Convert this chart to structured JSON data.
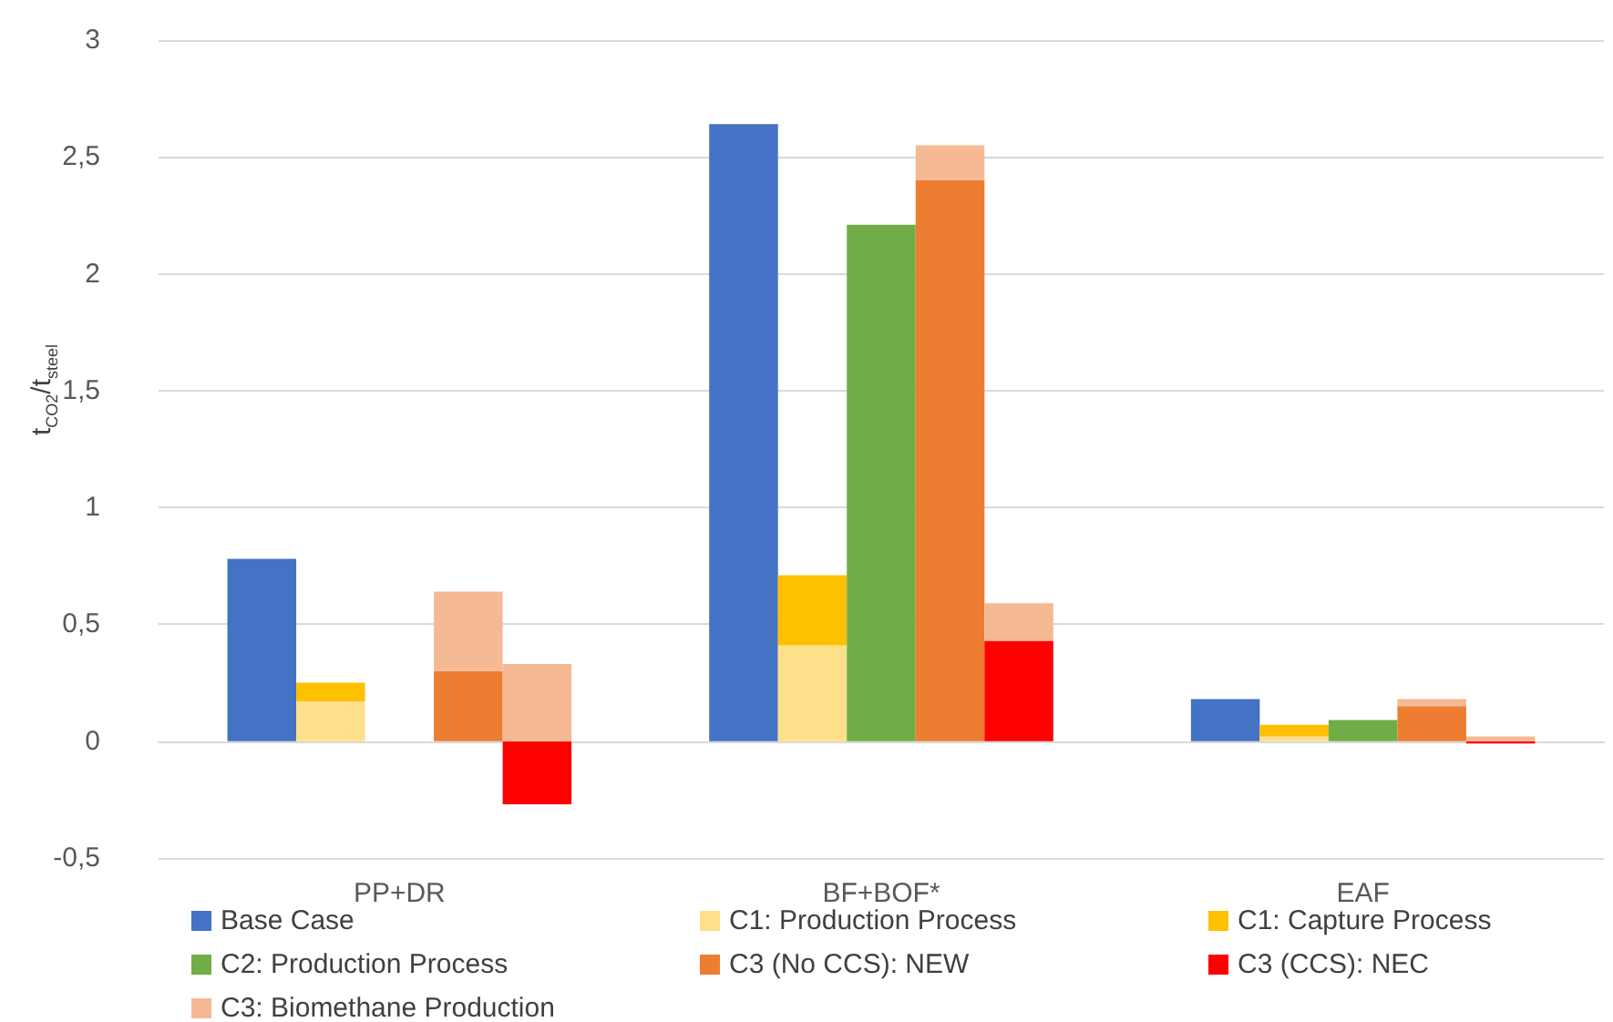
{
  "chart_data": {
    "type": "bar",
    "ylabel": "t$_{CO2}$/t$_{steel}$",
    "categories": [
      null,
      null,
      null,
      "PP+DR",
      null,
      null,
      null,
      null,
      null,
      null,
      "BF+BOF*",
      null,
      null,
      null,
      null,
      null,
      null,
      "EAF",
      null,
      null,
      null
    ],
    "stacked": true,
    "series": [
      {
        "name": "Base Case",
        "color": "#4472c4",
        "values": [
          null,
          0.78,
          null,
          null,
          null,
          null,
          null,
          null,
          2.64,
          null,
          null,
          null,
          null,
          null,
          null,
          0.18,
          null,
          null,
          null,
          null,
          null
        ]
      },
      {
        "name": "C1: Production Process",
        "color": "#ffe08a",
        "values": [
          null,
          null,
          0.17,
          null,
          null,
          null,
          null,
          null,
          null,
          0.41,
          null,
          null,
          null,
          null,
          null,
          null,
          0.02,
          null,
          null,
          null,
          null
        ]
      },
      {
        "name": "C1: Capture Process",
        "color": "#ffc000",
        "values": [
          null,
          null,
          0.08,
          null,
          null,
          null,
          null,
          null,
          null,
          0.3,
          null,
          null,
          null,
          null,
          null,
          null,
          0.05,
          null,
          null,
          null,
          null
        ]
      },
      {
        "name": "C2: Production Process",
        "color": "#70ad47",
        "values": [
          null,
          null,
          null,
          null,
          null,
          null,
          null,
          null,
          null,
          null,
          2.21,
          null,
          null,
          null,
          null,
          null,
          null,
          0.09,
          null,
          null,
          null
        ]
      },
      {
        "name": "C3 (No CCS): NEW",
        "color": "#ed7d31",
        "values": [
          null,
          null,
          null,
          null,
          0.3,
          null,
          null,
          null,
          null,
          null,
          null,
          2.4,
          null,
          null,
          null,
          null,
          null,
          null,
          0.15,
          null,
          null
        ]
      },
      {
        "name": "C3 (CCS): NEC",
        "color": "#ff0000",
        "values": [
          null,
          null,
          null,
          null,
          null,
          -0.27,
          null,
          null,
          null,
          null,
          null,
          null,
          0.43,
          null,
          null,
          null,
          null,
          null,
          null,
          -0.01,
          null
        ]
      },
      {
        "name": "C3: Biomethane Production",
        "color": "#f5b994",
        "values": [
          null,
          null,
          null,
          null,
          0.34,
          0.33,
          null,
          null,
          null,
          null,
          null,
          0.15,
          0.16,
          null,
          null,
          null,
          null,
          null,
          0.03,
          0.02,
          null
        ]
      }
    ],
    "ylim": [
      -0.5,
      3
    ],
    "yticks": [
      {
        "value": -0.5,
        "label": "-0,5"
      },
      0,
      {
        "value": 0.5,
        "label": "0,5"
      },
      1,
      {
        "value": 1.5,
        "label": "1,5"
      },
      2,
      {
        "value": 2.5,
        "label": "2,5"
      },
      3
    ],
    "grid": "y",
    "legend": "bottom"
  }
}
